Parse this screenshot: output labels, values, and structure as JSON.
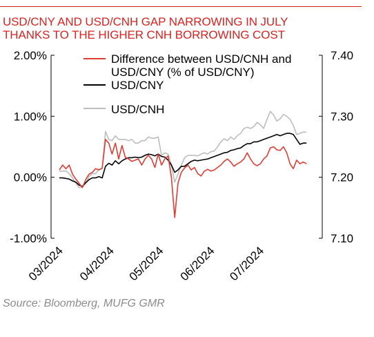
{
  "title": {
    "line1": "USD/CNY AND USD/CNH GAP NARROWING IN JULY",
    "line2": "THANKS TO THE HIGHER CNH BORROWING COST"
  },
  "source": "Source: Bloomberg, MUFG GMR",
  "colors": {
    "accent": "#d9231f",
    "diff": "#e03c31",
    "cny": "#000000",
    "cnh": "#bdbdbd",
    "axis": "#000000",
    "source_text": "#8c8c8c"
  },
  "chart_data": {
    "type": "line",
    "x_tick_labels": [
      "03/2024",
      "04/2024",
      "05/2024",
      "06/2024",
      "07/2024"
    ],
    "x_range": [
      "2024-03-01",
      "2024-07-31"
    ],
    "y_left": {
      "range": [
        -1.0,
        2.0
      ],
      "ticks": [
        "-1.00%",
        "0.00%",
        "1.00%",
        "2.00%"
      ]
    },
    "y_right": {
      "range": [
        7.1,
        7.4
      ],
      "ticks": [
        "7.10",
        "7.20",
        "7.30",
        "7.40"
      ]
    },
    "legend": {
      "placement": "top-left inside plot",
      "entries": [
        {
          "line1": "Difference between USD/CNH and",
          "line2": "USD/CNY (% of USD/CNY)",
          "color": "#e03c31"
        },
        {
          "line1": "USD/CNY",
          "color": "#000000"
        },
        {
          "line1": "USD/CNH",
          "color": "#bdbdbd"
        }
      ]
    },
    "grid": false,
    "series": [
      {
        "name": "Difference between USD/CNH and USD/CNY (% of USD/CNY)",
        "axis": "left",
        "color": "#e03c31",
        "points": [
          [
            "2024-03-01",
            0.12
          ],
          [
            "2024-03-03",
            0.2
          ],
          [
            "2024-03-05",
            0.14
          ],
          [
            "2024-03-07",
            0.2
          ],
          [
            "2024-03-09",
            0.05
          ],
          [
            "2024-03-11",
            -0.03
          ],
          [
            "2024-03-13",
            -0.1
          ],
          [
            "2024-03-15",
            -0.17
          ],
          [
            "2024-03-17",
            -0.04
          ],
          [
            "2024-03-19",
            0.05
          ],
          [
            "2024-03-21",
            0.08
          ],
          [
            "2024-03-23",
            0.14
          ],
          [
            "2024-03-25",
            0.12
          ],
          [
            "2024-03-27",
            0.15
          ],
          [
            "2024-03-29",
            0.62
          ],
          [
            "2024-03-31",
            0.56
          ],
          [
            "2024-04-02",
            0.38
          ],
          [
            "2024-04-04",
            0.56
          ],
          [
            "2024-04-06",
            0.3
          ],
          [
            "2024-04-08",
            0.52
          ],
          [
            "2024-04-10",
            0.33
          ],
          [
            "2024-04-12",
            0.3
          ],
          [
            "2024-04-14",
            0.26
          ],
          [
            "2024-04-16",
            0.28
          ],
          [
            "2024-04-18",
            0.3
          ],
          [
            "2024-04-20",
            0.2
          ],
          [
            "2024-04-22",
            0.3
          ],
          [
            "2024-04-24",
            0.36
          ],
          [
            "2024-04-26",
            0.3
          ],
          [
            "2024-04-28",
            0.16
          ],
          [
            "2024-04-30",
            0.38
          ],
          [
            "2024-05-02",
            0.2
          ],
          [
            "2024-05-04",
            0.3
          ],
          [
            "2024-05-06",
            0.35
          ],
          [
            "2024-05-08",
            0.0
          ],
          [
            "2024-05-10",
            -0.66
          ],
          [
            "2024-05-12",
            -0.1
          ],
          [
            "2024-05-14",
            0.08
          ],
          [
            "2024-05-16",
            0.15
          ],
          [
            "2024-05-18",
            0.2
          ],
          [
            "2024-05-20",
            0.12
          ],
          [
            "2024-05-22",
            0.16
          ],
          [
            "2024-05-24",
            0.06
          ],
          [
            "2024-05-26",
            0.02
          ],
          [
            "2024-05-28",
            0.1
          ],
          [
            "2024-05-30",
            0.13
          ],
          [
            "2024-06-01",
            0.1
          ],
          [
            "2024-06-03",
            0.12
          ],
          [
            "2024-06-05",
            0.16
          ],
          [
            "2024-06-07",
            0.2
          ],
          [
            "2024-06-09",
            0.26
          ],
          [
            "2024-06-11",
            0.3
          ],
          [
            "2024-06-13",
            0.25
          ],
          [
            "2024-06-15",
            0.18
          ],
          [
            "2024-06-17",
            0.22
          ],
          [
            "2024-06-19",
            0.25
          ],
          [
            "2024-06-21",
            0.3
          ],
          [
            "2024-06-23",
            0.4
          ],
          [
            "2024-06-25",
            0.3
          ],
          [
            "2024-06-27",
            0.22
          ],
          [
            "2024-06-29",
            0.19
          ],
          [
            "2024-07-01",
            0.22
          ],
          [
            "2024-07-03",
            0.3
          ],
          [
            "2024-07-05",
            0.35
          ],
          [
            "2024-07-07",
            0.48
          ],
          [
            "2024-07-09",
            0.5
          ],
          [
            "2024-07-11",
            0.45
          ],
          [
            "2024-07-13",
            0.44
          ],
          [
            "2024-07-15",
            0.5
          ],
          [
            "2024-07-17",
            0.4
          ],
          [
            "2024-07-19",
            0.22
          ],
          [
            "2024-07-21",
            0.14
          ],
          [
            "2024-07-23",
            0.28
          ],
          [
            "2024-07-25",
            0.22
          ],
          [
            "2024-07-27",
            0.25
          ],
          [
            "2024-07-29",
            0.22
          ]
        ]
      },
      {
        "name": "USD/CNY",
        "axis": "right",
        "color": "#000000",
        "points": [
          [
            "2024-03-01",
            7.199
          ],
          [
            "2024-03-03",
            7.199
          ],
          [
            "2024-03-05",
            7.198
          ],
          [
            "2024-03-07",
            7.197
          ],
          [
            "2024-03-09",
            7.194
          ],
          [
            "2024-03-11",
            7.192
          ],
          [
            "2024-03-13",
            7.187
          ],
          [
            "2024-03-15",
            7.185
          ],
          [
            "2024-03-17",
            7.191
          ],
          [
            "2024-03-19",
            7.196
          ],
          [
            "2024-03-21",
            7.199
          ],
          [
            "2024-03-23",
            7.199
          ],
          [
            "2024-03-25",
            7.201
          ],
          [
            "2024-03-27",
            7.199
          ],
          [
            "2024-03-29",
            7.218
          ],
          [
            "2024-03-31",
            7.223
          ],
          [
            "2024-04-02",
            7.22
          ],
          [
            "2024-04-04",
            7.227
          ],
          [
            "2024-04-06",
            7.222
          ],
          [
            "2024-04-08",
            7.227
          ],
          [
            "2024-04-10",
            7.23
          ],
          [
            "2024-04-12",
            7.232
          ],
          [
            "2024-04-14",
            7.232
          ],
          [
            "2024-04-16",
            7.233
          ],
          [
            "2024-04-18",
            7.232
          ],
          [
            "2024-04-20",
            7.233
          ],
          [
            "2024-04-22",
            7.236
          ],
          [
            "2024-04-24",
            7.238
          ],
          [
            "2024-04-26",
            7.237
          ],
          [
            "2024-04-28",
            7.235
          ],
          [
            "2024-04-30",
            7.238
          ],
          [
            "2024-05-02",
            7.234
          ],
          [
            "2024-05-04",
            7.233
          ],
          [
            "2024-05-06",
            7.228
          ],
          [
            "2024-05-08",
            7.22
          ],
          [
            "2024-05-10",
            7.208
          ],
          [
            "2024-05-12",
            7.212
          ],
          [
            "2024-05-14",
            7.218
          ],
          [
            "2024-05-16",
            7.218
          ],
          [
            "2024-05-18",
            7.222
          ],
          [
            "2024-05-20",
            7.226
          ],
          [
            "2024-05-22",
            7.228
          ],
          [
            "2024-05-24",
            7.227
          ],
          [
            "2024-05-26",
            7.228
          ],
          [
            "2024-05-28",
            7.229
          ],
          [
            "2024-05-30",
            7.23
          ],
          [
            "2024-06-01",
            7.232
          ],
          [
            "2024-06-03",
            7.234
          ],
          [
            "2024-06-05",
            7.236
          ],
          [
            "2024-06-07",
            7.238
          ],
          [
            "2024-06-09",
            7.24
          ],
          [
            "2024-06-11",
            7.241
          ],
          [
            "2024-06-13",
            7.244
          ],
          [
            "2024-06-15",
            7.245
          ],
          [
            "2024-06-17",
            7.247
          ],
          [
            "2024-06-19",
            7.248
          ],
          [
            "2024-06-21",
            7.252
          ],
          [
            "2024-06-23",
            7.255
          ],
          [
            "2024-06-25",
            7.255
          ],
          [
            "2024-06-27",
            7.258
          ],
          [
            "2024-06-29",
            7.258
          ],
          [
            "2024-07-01",
            7.26
          ],
          [
            "2024-07-03",
            7.262
          ],
          [
            "2024-07-05",
            7.264
          ],
          [
            "2024-07-07",
            7.266
          ],
          [
            "2024-07-09",
            7.268
          ],
          [
            "2024-07-11",
            7.27
          ],
          [
            "2024-07-13",
            7.268
          ],
          [
            "2024-07-15",
            7.27
          ],
          [
            "2024-07-17",
            7.272
          ],
          [
            "2024-07-19",
            7.272
          ],
          [
            "2024-07-21",
            7.27
          ],
          [
            "2024-07-23",
            7.262
          ],
          [
            "2024-07-25",
            7.254
          ],
          [
            "2024-07-27",
            7.256
          ],
          [
            "2024-07-29",
            7.256
          ]
        ]
      },
      {
        "name": "USD/CNH",
        "axis": "right",
        "color": "#bdbdbd",
        "points": [
          [
            "2024-03-01",
            7.21
          ],
          [
            "2024-03-03",
            7.21
          ],
          [
            "2024-03-05",
            7.21
          ],
          [
            "2024-03-07",
            7.206
          ],
          [
            "2024-03-09",
            7.199
          ],
          [
            "2024-03-11",
            7.19
          ],
          [
            "2024-03-13",
            7.183
          ],
          [
            "2024-03-15",
            7.184
          ],
          [
            "2024-03-17",
            7.19
          ],
          [
            "2024-03-19",
            7.201
          ],
          [
            "2024-03-21",
            7.206
          ],
          [
            "2024-03-23",
            7.206
          ],
          [
            "2024-03-25",
            7.213
          ],
          [
            "2024-03-27",
            7.214
          ],
          [
            "2024-03-29",
            7.275
          ],
          [
            "2024-03-31",
            7.262
          ],
          [
            "2024-04-02",
            7.26
          ],
          [
            "2024-04-04",
            7.268
          ],
          [
            "2024-04-06",
            7.262
          ],
          [
            "2024-04-08",
            7.262
          ],
          [
            "2024-04-10",
            7.262
          ],
          [
            "2024-04-12",
            7.26
          ],
          [
            "2024-04-14",
            7.262
          ],
          [
            "2024-04-16",
            7.256
          ],
          [
            "2024-04-18",
            7.256
          ],
          [
            "2024-04-20",
            7.26
          ],
          [
            "2024-04-22",
            7.26
          ],
          [
            "2024-04-24",
            7.266
          ],
          [
            "2024-04-26",
            7.264
          ],
          [
            "2024-04-28",
            7.264
          ],
          [
            "2024-04-30",
            7.266
          ],
          [
            "2024-05-02",
            7.236
          ],
          [
            "2024-05-04",
            7.24
          ],
          [
            "2024-05-06",
            7.238
          ],
          [
            "2024-05-08",
            7.22
          ],
          [
            "2024-05-10",
            7.192
          ],
          [
            "2024-05-12",
            7.205
          ],
          [
            "2024-05-14",
            7.22
          ],
          [
            "2024-05-16",
            7.232
          ],
          [
            "2024-05-18",
            7.236
          ],
          [
            "2024-05-20",
            7.236
          ],
          [
            "2024-05-22",
            7.236
          ],
          [
            "2024-05-24",
            7.235
          ],
          [
            "2024-05-26",
            7.238
          ],
          [
            "2024-05-28",
            7.24
          ],
          [
            "2024-05-30",
            7.238
          ],
          [
            "2024-06-01",
            7.242
          ],
          [
            "2024-06-03",
            7.243
          ],
          [
            "2024-06-05",
            7.25
          ],
          [
            "2024-06-07",
            7.258
          ],
          [
            "2024-06-09",
            7.263
          ],
          [
            "2024-06-11",
            7.26
          ],
          [
            "2024-06-13",
            7.266
          ],
          [
            "2024-06-15",
            7.262
          ],
          [
            "2024-06-17",
            7.268
          ],
          [
            "2024-06-19",
            7.272
          ],
          [
            "2024-06-21",
            7.28
          ],
          [
            "2024-06-23",
            7.282
          ],
          [
            "2024-06-25",
            7.28
          ],
          [
            "2024-06-27",
            7.283
          ],
          [
            "2024-06-29",
            7.29
          ],
          [
            "2024-07-01",
            7.286
          ],
          [
            "2024-07-03",
            7.28
          ],
          [
            "2024-07-05",
            7.295
          ],
          [
            "2024-07-07",
            7.308
          ],
          [
            "2024-07-09",
            7.302
          ],
          [
            "2024-07-11",
            7.292
          ],
          [
            "2024-07-13",
            7.296
          ],
          [
            "2024-07-15",
            7.303
          ],
          [
            "2024-07-17",
            7.3
          ],
          [
            "2024-07-19",
            7.295
          ],
          [
            "2024-07-21",
            7.285
          ],
          [
            "2024-07-23",
            7.27
          ],
          [
            "2024-07-25",
            7.272
          ],
          [
            "2024-07-27",
            7.274
          ],
          [
            "2024-07-29",
            7.274
          ]
        ]
      }
    ]
  }
}
